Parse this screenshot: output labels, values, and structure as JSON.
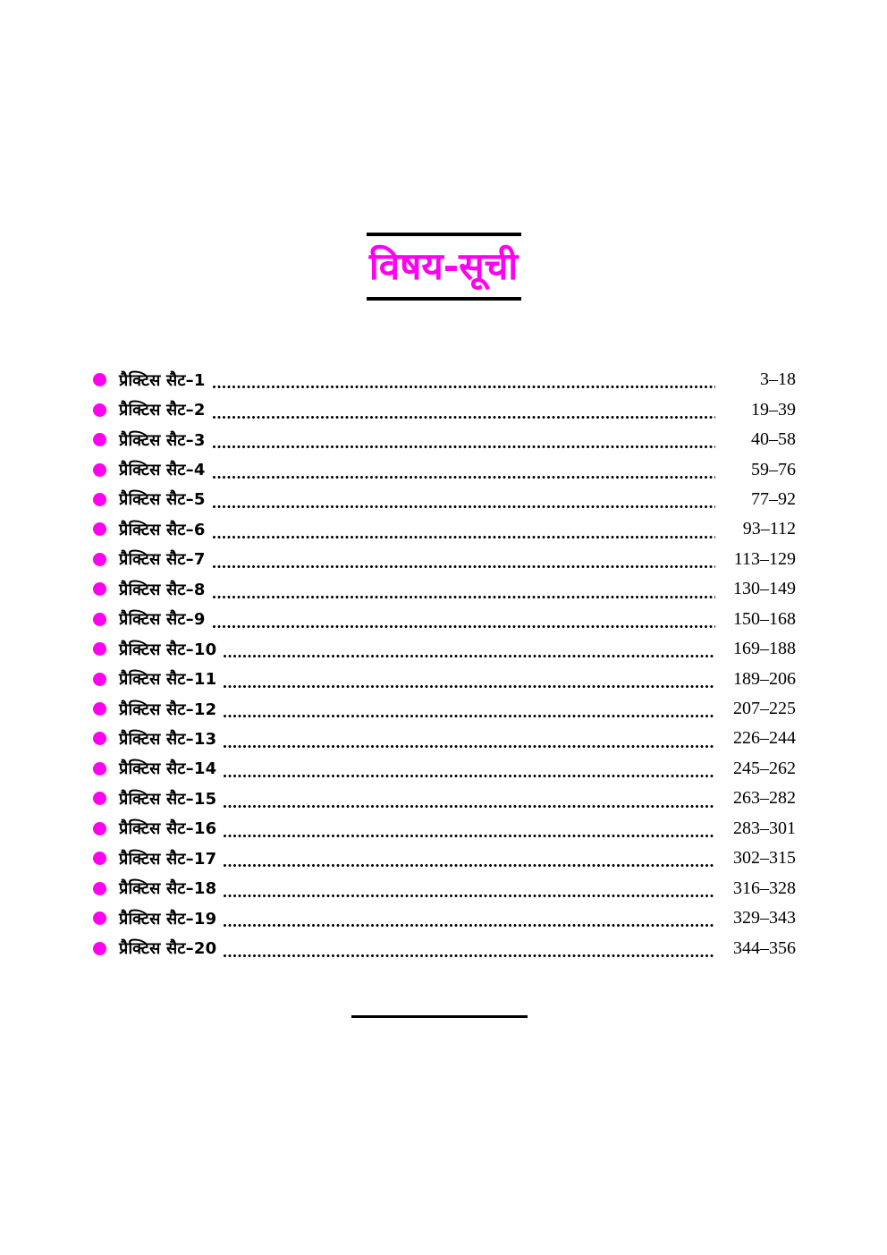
{
  "page": {
    "title": "विषय-सूची"
  },
  "colors": {
    "accent": "#ff00f0",
    "text": "#000000",
    "rule": "#000000",
    "background": "#ffffff"
  },
  "toc": {
    "bullet_icon": "filled-circle",
    "entries": [
      {
        "label": "प्रैक्टिस सैट–1",
        "pages": "3–18"
      },
      {
        "label": "प्रैक्टिस सैट–2",
        "pages": "19–39"
      },
      {
        "label": "प्रैक्टिस सैट–3",
        "pages": "40–58"
      },
      {
        "label": "प्रैक्टिस सैट–4",
        "pages": "59–76"
      },
      {
        "label": "प्रैक्टिस सैट–5",
        "pages": "77–92"
      },
      {
        "label": "प्रैक्टिस सैट–6",
        "pages": "93–112"
      },
      {
        "label": "प्रैक्टिस सैट–7",
        "pages": "113–129"
      },
      {
        "label": "प्रैक्टिस सैट–8",
        "pages": "130–149"
      },
      {
        "label": "प्रैक्टिस सैट–9",
        "pages": "150–168"
      },
      {
        "label": "प्रैक्टिस सैट–10",
        "pages": "169–188"
      },
      {
        "label": "प्रैक्टिस सैट–11",
        "pages": "189–206"
      },
      {
        "label": "प्रैक्टिस सैट–12",
        "pages": "207–225"
      },
      {
        "label": "प्रैक्टिस सैट–13",
        "pages": "226–244"
      },
      {
        "label": "प्रैक्टिस सैट–14",
        "pages": "245–262"
      },
      {
        "label": "प्रैक्टिस सैट–15",
        "pages": "263–282"
      },
      {
        "label": "प्रैक्टिस सैट–16",
        "pages": "283–301"
      },
      {
        "label": "प्रैक्टिस सैट–17",
        "pages": "302–315"
      },
      {
        "label": "प्रैक्टिस सैट–18",
        "pages": "316–328"
      },
      {
        "label": "प्रैक्टिस सैट–19",
        "pages": "329–343"
      },
      {
        "label": "प्रैक्टिस सैट–20",
        "pages": "344–356"
      }
    ]
  }
}
